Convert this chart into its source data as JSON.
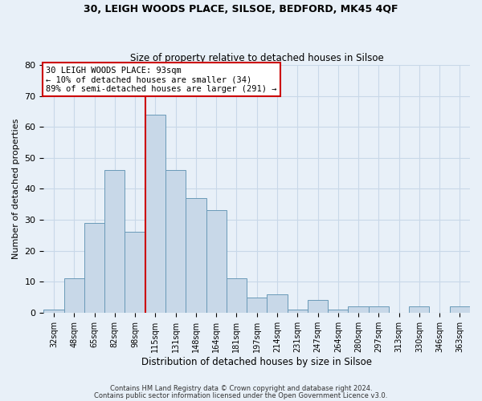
{
  "title1": "30, LEIGH WOODS PLACE, SILSOE, BEDFORD, MK45 4QF",
  "title2": "Size of property relative to detached houses in Silsoe",
  "xlabel": "Distribution of detached houses by size in Silsoe",
  "ylabel": "Number of detached properties",
  "bar_labels": [
    "32sqm",
    "48sqm",
    "65sqm",
    "82sqm",
    "98sqm",
    "115sqm",
    "131sqm",
    "148sqm",
    "164sqm",
    "181sqm",
    "197sqm",
    "214sqm",
    "231sqm",
    "247sqm",
    "264sqm",
    "280sqm",
    "297sqm",
    "313sqm",
    "330sqm",
    "346sqm",
    "363sqm"
  ],
  "bar_values": [
    1,
    11,
    29,
    46,
    26,
    64,
    46,
    37,
    33,
    11,
    5,
    6,
    1,
    4,
    1,
    2,
    2,
    0,
    2,
    0,
    2
  ],
  "bar_color": "#c8d8e8",
  "bar_edgecolor": "#6a9ab8",
  "bar_linewidth": 0.7,
  "vline_color": "#cc0000",
  "annotation_box_text": "30 LEIGH WOODS PLACE: 93sqm\n← 10% of detached houses are smaller (34)\n89% of semi-detached houses are larger (291) →",
  "annotation_box_edgecolor": "#cc0000",
  "annotation_box_facecolor": "white",
  "ylim": [
    0,
    80
  ],
  "yticks": [
    0,
    10,
    20,
    30,
    40,
    50,
    60,
    70,
    80
  ],
  "grid_color": "#c8d8e8",
  "bg_color": "#e8f0f8",
  "footer1": "Contains HM Land Registry data © Crown copyright and database right 2024.",
  "footer2": "Contains public sector information licensed under the Open Government Licence v3.0."
}
